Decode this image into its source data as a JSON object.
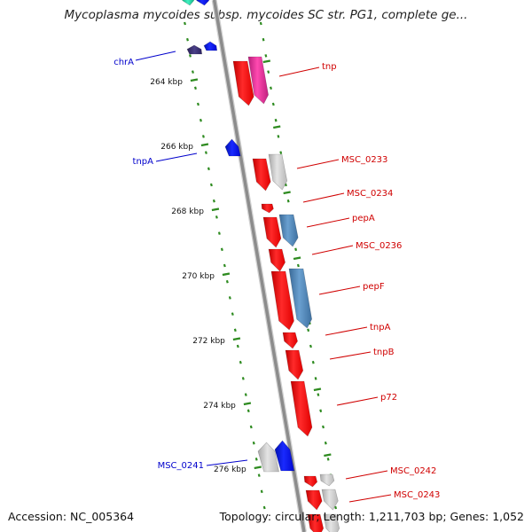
{
  "title": "Mycoplasma mycoides subsp. mycoides SC str. PG1, complete ge...",
  "footer": {
    "accession": "Accession: NC_005364",
    "topology": "Topology: circular; Length: 1,211,703 bp; Genes: 1,052"
  },
  "colors": {
    "backbone": "#8c8c8c",
    "tick": "#2e8b20",
    "forward_label": "#d00000",
    "reverse_label": "#0000cc",
    "cds_red": "#ff1010",
    "blue_gene": "#0a1aff",
    "dark_gene": "#3c3070",
    "grey_gene": "#c8c8c8",
    "steel_gene": "#4f86b8",
    "pink_gene": "#e0309a",
    "teal_gene": "#22d7a0"
  },
  "scale": {
    "unit": "kbp",
    "labels": [
      "264 kbp",
      "266 kbp",
      "268 kbp",
      "270 kbp",
      "272 kbp",
      "274 kbp",
      "276 kbp"
    ]
  },
  "forward_labels": [
    "tnp",
    "MSC_0233",
    "MSC_0234",
    "pepA",
    "MSC_0236",
    "pepF",
    "tnpA",
    "tnpB",
    "p72",
    "MSC_0242",
    "MSC_0243"
  ],
  "reverse_labels": [
    "chrA",
    "tnpA",
    "MSC_0241"
  ]
}
